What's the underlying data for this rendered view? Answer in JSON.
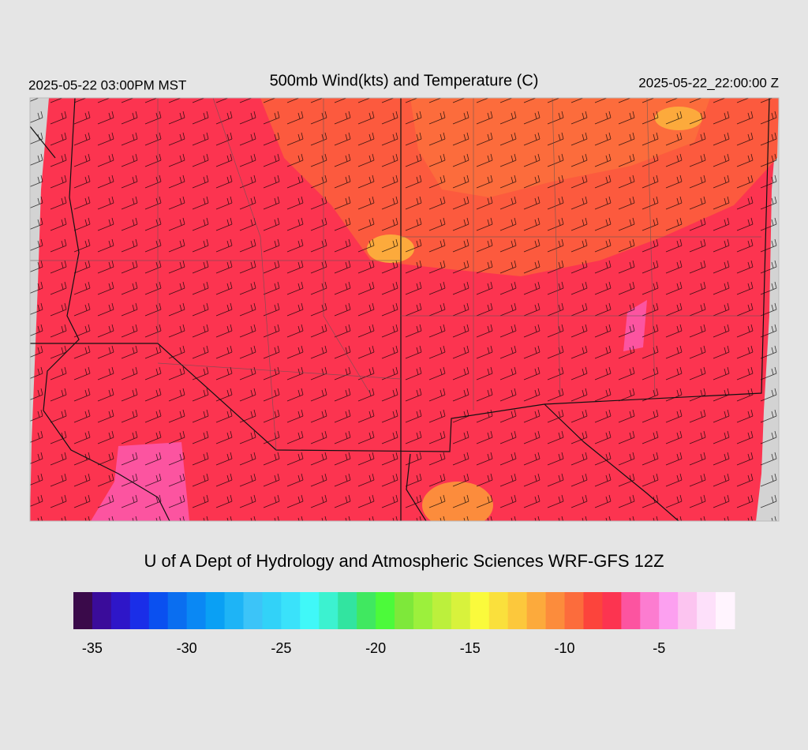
{
  "header": {
    "left": "2025-05-22 03:00PM MST",
    "title": "500mb Wind(kts) and Temperature (C)",
    "right": "2025-05-22_22:00:00 Z"
  },
  "footer": "U of A Dept of Hydrology and Atmospheric Sciences WRF-GFS 12Z",
  "colorbar": {
    "min": -36,
    "max": -1,
    "colors": [
      "#3a0a4a",
      "#3a0c9a",
      "#2e16c8",
      "#1a2ee8",
      "#0a50f0",
      "#0a6ef0",
      "#0a88f4",
      "#0aa0f4",
      "#1eb4f6",
      "#3cc4f8",
      "#32d2f8",
      "#3ae2fa",
      "#40f8f8",
      "#3cf2d0",
      "#32e4a0",
      "#40e860",
      "#4cfa3a",
      "#7ee83a",
      "#9cf03c",
      "#bcf03c",
      "#d8f23c",
      "#fafa3c",
      "#fae03c",
      "#fcc83c",
      "#fcaa3c",
      "#fc8c3c",
      "#fc6c3c",
      "#fc443c",
      "#fc3450",
      "#fc54a0",
      "#fc7cd0",
      "#fca0f0",
      "#fcc4f0",
      "#fde0fa",
      "#fff4fe"
    ],
    "ticks": [
      -35,
      -30,
      -25,
      -20,
      -15,
      -10,
      -5
    ]
  }
}
